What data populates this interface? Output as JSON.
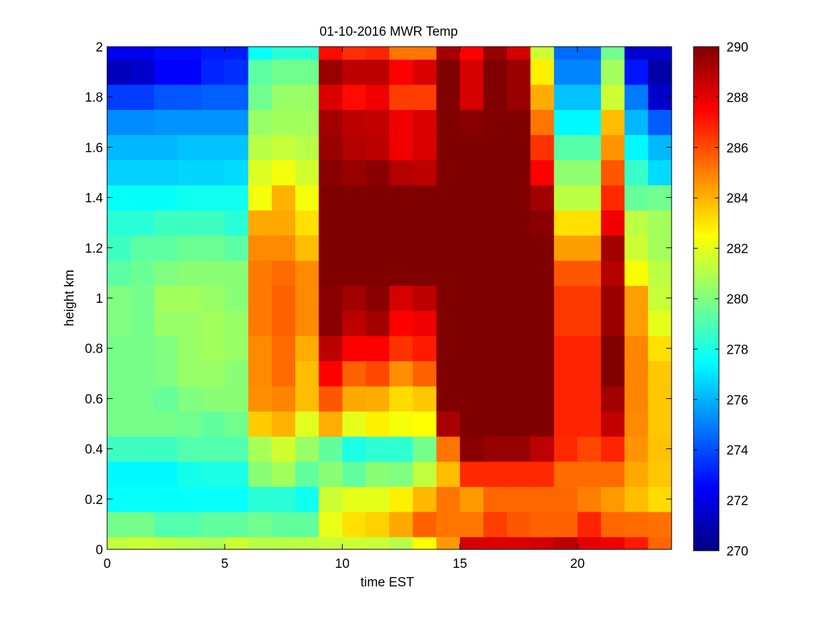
{
  "chart_data": {
    "type": "heatmap",
    "title": "01-10-2016 MWR Temp",
    "xlabel": "time EST",
    "ylabel": "height km",
    "xlim": [
      0,
      24
    ],
    "ylim": [
      0,
      2
    ],
    "x_ticks": [
      0,
      5,
      10,
      15,
      20
    ],
    "y_ticks": [
      0,
      0.2,
      0.4,
      0.6,
      0.8,
      1,
      1.2,
      1.4,
      1.6,
      1.8,
      2
    ],
    "colorbar": {
      "range": [
        270,
        290
      ],
      "ticks": [
        270,
        272,
        274,
        276,
        278,
        280,
        282,
        284,
        286,
        288,
        290
      ],
      "colormap": "jet"
    },
    "grid": false,
    "x": [
      0,
      1,
      2,
      3,
      4,
      5,
      6,
      7,
      8,
      9,
      10,
      11,
      12,
      13,
      14,
      15,
      16,
      17,
      18,
      19,
      20,
      21,
      22,
      23,
      24
    ],
    "heights": [
      0,
      0.05,
      0.15,
      0.25,
      0.35,
      0.45,
      0.55,
      0.65,
      0.75,
      0.85,
      0.95,
      1.05,
      1.15,
      1.25,
      1.35,
      1.45,
      1.55,
      1.65,
      1.75,
      1.85,
      1.95,
      2
    ],
    "values": [
      [
        281.3,
        281.5,
        281.3,
        281.1,
        280.9,
        281.5,
        281.1,
        281.1,
        281.2,
        281.4,
        281.5,
        281.4,
        281.1,
        282.5,
        284.5,
        288.3,
        288.2,
        288.2,
        288.4,
        288.8,
        288,
        287.8,
        287,
        285.5
      ],
      [
        279.8,
        279.8,
        279.1,
        279.1,
        279.4,
        279.4,
        279.7,
        279.4,
        279.4,
        282.1,
        283.1,
        283.4,
        284.2,
        285.6,
        285.2,
        285.2,
        286.3,
        285.8,
        285.6,
        285.6,
        286.8,
        285.5,
        285.4,
        285.3
      ],
      [
        277.6,
        277.6,
        277.6,
        277.6,
        277.6,
        277.6,
        278.3,
        278.3,
        277.8,
        281.5,
        282,
        282,
        282.8,
        283.9,
        285.2,
        284.5,
        285.5,
        285.5,
        285.5,
        285.5,
        285,
        284.5,
        283.8,
        283.2
      ],
      [
        277.4,
        277.4,
        277.4,
        277.9,
        278,
        278,
        280.2,
        280.7,
        279.4,
        280.2,
        279.4,
        280.2,
        280,
        281.3,
        283.8,
        286.7,
        286.7,
        286.7,
        286.7,
        285.4,
        285.4,
        285.4,
        284.2,
        283.6
      ],
      [
        278.7,
        278.7,
        278.7,
        279.1,
        279.1,
        279.1,
        280.8,
        281.6,
        280.5,
        279.4,
        278,
        278.4,
        278.4,
        279.8,
        285.2,
        289.8,
        289.5,
        289.5,
        288.8,
        286.7,
        286.1,
        286.8,
        284.6,
        283.7
      ],
      [
        279.8,
        279.8,
        279.8,
        279.7,
        279.4,
        279.7,
        283.5,
        284,
        281.9,
        284.1,
        282,
        282.8,
        282.3,
        282.5,
        289.2,
        290,
        290,
        290,
        290,
        286.8,
        286.8,
        288.7,
        284.8,
        283.6
      ],
      [
        279.8,
        279.8,
        279.5,
        280,
        280.2,
        280.2,
        284.7,
        284.9,
        283.8,
        285.8,
        284.2,
        284.1,
        283.2,
        283.6,
        290,
        290,
        290,
        290,
        290,
        286.8,
        286.8,
        289.3,
        284.9,
        283.6
      ],
      [
        279.8,
        279.8,
        280,
        280.5,
        280.5,
        280.2,
        284.8,
        285.4,
        283.8,
        287.5,
        285.6,
        286.1,
        284.7,
        285.6,
        290,
        290,
        290,
        290,
        290,
        286.8,
        286.8,
        290,
        284.9,
        283.6
      ],
      [
        279.8,
        279.8,
        280,
        280.5,
        280.7,
        280.5,
        284.8,
        285.4,
        284.1,
        288.8,
        287.5,
        287.5,
        286.5,
        287,
        290,
        290,
        290,
        290,
        290,
        286.8,
        286.8,
        290,
        284.9,
        283.1
      ],
      [
        280,
        279.8,
        280.5,
        280.5,
        280.7,
        280.5,
        285.1,
        285.6,
        284.8,
        289.8,
        288.8,
        289.3,
        287.5,
        287.8,
        290,
        290,
        290,
        290,
        290,
        286.4,
        286.4,
        289.5,
        284.4,
        282
      ],
      [
        280,
        279.8,
        280.7,
        280.7,
        280.5,
        280.2,
        285.1,
        285.6,
        284.8,
        289.8,
        289.3,
        289.8,
        288.3,
        288.8,
        290,
        290,
        290,
        290,
        290,
        286.4,
        286.4,
        289.5,
        284.4,
        281.4
      ],
      [
        279.3,
        279.6,
        280,
        280.2,
        280.2,
        280.2,
        285.1,
        285.4,
        284.8,
        290,
        290,
        290,
        290,
        290,
        290,
        290,
        290,
        290,
        290,
        285.8,
        285.8,
        289,
        282.4,
        281.2
      ],
      [
        278.7,
        279.3,
        279.3,
        279.6,
        279.6,
        279.3,
        284.8,
        284.8,
        283.8,
        290,
        290,
        290,
        290,
        290,
        290,
        290,
        290,
        290,
        290,
        284.4,
        284.4,
        289.3,
        281.5,
        280.7
      ],
      [
        278.3,
        278.3,
        278.7,
        278.7,
        278.7,
        278.3,
        284.2,
        284.2,
        283.1,
        290,
        290,
        290,
        290,
        290,
        290,
        290,
        290,
        290,
        289.8,
        283.1,
        283.1,
        287.8,
        281.2,
        280.7
      ],
      [
        277.6,
        277.6,
        277.6,
        277.8,
        277.8,
        277.8,
        282.3,
        284,
        282.3,
        290,
        290,
        290,
        290,
        290,
        290,
        290,
        290,
        290,
        289.3,
        281.2,
        281.2,
        286.7,
        279.5,
        279.7
      ],
      [
        276.6,
        276.6,
        276.6,
        276.7,
        276.7,
        276.8,
        281.8,
        282.3,
        281.6,
        289.8,
        289.5,
        289.8,
        289,
        288.8,
        290,
        290,
        290,
        290,
        287.5,
        280.3,
        280.3,
        285.8,
        278.6,
        276.8
      ],
      [
        276.1,
        276.1,
        276.1,
        276.3,
        276.3,
        276.3,
        281.1,
        281.4,
        281.1,
        289.5,
        289,
        288.8,
        287.8,
        288.2,
        290,
        290,
        290,
        290,
        286.5,
        279.2,
        279.2,
        284.6,
        277.4,
        276.1
      ],
      [
        275.2,
        275.2,
        275.4,
        275.4,
        275.4,
        275.4,
        280.5,
        280.7,
        280.7,
        289.3,
        288.8,
        288.7,
        287.8,
        288.2,
        290,
        289.8,
        290,
        290,
        285.2,
        277.4,
        277.4,
        283.8,
        276.1,
        274.3
      ],
      [
        273.7,
        273.7,
        274.2,
        274.2,
        274.4,
        274.4,
        279.7,
        280.5,
        280.5,
        288.2,
        287.3,
        287.8,
        286.3,
        286.3,
        290,
        288.3,
        290,
        289.5,
        284.1,
        276.3,
        276.3,
        281.5,
        274.9,
        271.5
      ],
      [
        271.2,
        271.5,
        272.5,
        272.5,
        273.2,
        273.4,
        279.3,
        279.7,
        279.7,
        289.5,
        288.8,
        288.8,
        287.5,
        288.2,
        290,
        288.3,
        290,
        289.5,
        282.8,
        275.1,
        275.1,
        280.7,
        272.9,
        270.8
      ],
      [
        272.2,
        272.2,
        272.7,
        272.7,
        273,
        273,
        277.6,
        278.3,
        278.3,
        287.3,
        286.6,
        286.8,
        285.2,
        285.2,
        289.2,
        287.5,
        289.5,
        288.3,
        281.5,
        274.6,
        274.6,
        279.7,
        271.6,
        271.6
      ]
    ]
  }
}
